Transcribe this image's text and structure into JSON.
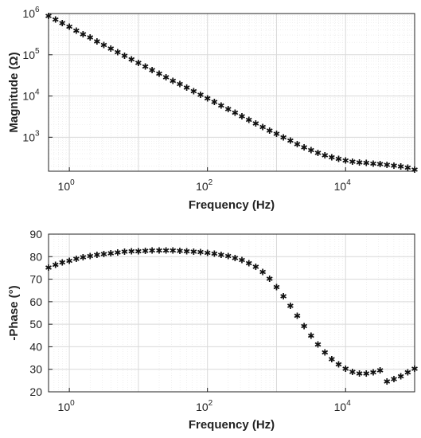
{
  "chart_data": [
    {
      "type": "scatter",
      "xlabel": "Frequency (Hz)",
      "ylabel": "Magnitude (Ω)",
      "xscale": "log",
      "yscale": "log",
      "xlim": [
        0.5,
        100000
      ],
      "ylim": [
        150,
        1000000
      ],
      "grid": true,
      "marker": "asterisk",
      "x_ticks": [
        {
          "base": "10",
          "exp": "0"
        },
        {
          "base": "10",
          "exp": "2"
        },
        {
          "base": "10",
          "exp": "4"
        }
      ],
      "y_ticks": [
        {
          "base": "10",
          "exp": "3"
        },
        {
          "base": "10",
          "exp": "4"
        },
        {
          "base": "10",
          "exp": "5"
        },
        {
          "base": "10",
          "exp": "6"
        }
      ],
      "x": [
        0.5,
        0.63,
        0.79,
        1.0,
        1.26,
        1.58,
        2.0,
        2.51,
        3.16,
        3.98,
        5.01,
        6.31,
        7.94,
        10.0,
        12.6,
        15.8,
        20.0,
        25.1,
        31.6,
        39.8,
        50.1,
        63.1,
        79.4,
        100,
        126,
        158,
        200,
        251,
        316,
        398,
        501,
        631,
        794,
        1000,
        1259,
        1585,
        1995,
        2512,
        3162,
        3981,
        5012,
        6310,
        7943,
        10000,
        12589,
        15849,
        19953,
        25119,
        31623,
        39811,
        50119,
        63096,
        79433,
        100000
      ],
      "y": [
        850000,
        700000,
        570000,
        470000,
        380000,
        310000,
        255000,
        208000,
        170000,
        139000,
        114000,
        93000,
        76000,
        62500,
        51200,
        41900,
        34300,
        28100,
        23000,
        18900,
        15500,
        12700,
        10400,
        8500,
        7000,
        5750,
        4700,
        3850,
        3150,
        2580,
        2110,
        1740,
        1430,
        1180,
        980,
        810,
        670,
        560,
        480,
        410,
        360,
        320,
        290,
        265,
        250,
        240,
        232,
        225,
        218,
        210,
        200,
        190,
        178,
        160
      ]
    },
    {
      "type": "scatter",
      "xlabel": "Frequency (Hz)",
      "ylabel": "-Phase (°)",
      "xscale": "log",
      "xlim": [
        0.5,
        100000
      ],
      "ylim": [
        20,
        90
      ],
      "grid": true,
      "marker": "asterisk",
      "x_ticks": [
        {
          "base": "10",
          "exp": "0"
        },
        {
          "base": "10",
          "exp": "2"
        },
        {
          "base": "10",
          "exp": "4"
        }
      ],
      "y_ticks": [
        "20",
        "30",
        "40",
        "50",
        "60",
        "70",
        "80",
        "90"
      ],
      "x": [
        0.5,
        0.63,
        0.79,
        1.0,
        1.26,
        1.58,
        2.0,
        2.51,
        3.16,
        3.98,
        5.01,
        6.31,
        7.94,
        10.0,
        12.6,
        15.8,
        20.0,
        25.1,
        31.6,
        39.8,
        50.1,
        63.1,
        79.4,
        100,
        126,
        158,
        200,
        251,
        316,
        398,
        501,
        631,
        794,
        1000,
        1259,
        1585,
        1995,
        2512,
        3162,
        3981,
        5012,
        6310,
        7943,
        10000,
        12589,
        15849,
        19953,
        25119,
        31623,
        39811,
        50119,
        63096,
        79433,
        100000
      ],
      "y": [
        75.0,
        76.2,
        77.2,
        78.0,
        78.8,
        79.5,
        80.1,
        80.6,
        81.0,
        81.4,
        81.7,
        82.0,
        82.2,
        82.3,
        82.4,
        82.5,
        82.5,
        82.5,
        82.5,
        82.4,
        82.3,
        82.1,
        81.9,
        81.6,
        81.2,
        80.7,
        80.1,
        79.3,
        78.3,
        77.0,
        75.3,
        73.0,
        70.0,
        66.4,
        62.3,
        58.0,
        53.5,
        49.0,
        44.7,
        40.8,
        37.4,
        34.4,
        32.0,
        30.0,
        28.6,
        28.0,
        28.0,
        28.5,
        29.3,
        24.5,
        25.5,
        26.8,
        28.5,
        30.0
      ]
    }
  ]
}
